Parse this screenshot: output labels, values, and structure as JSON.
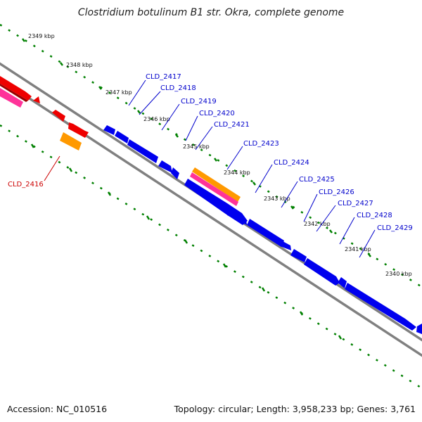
{
  "title": "Clostridium botulinum B1 str. Okra, complete genome",
  "footer": {
    "accession": "Accession: NC_010516",
    "topology": "Topology: circular; Length: 3,958,233 bp; Genes: 3,761"
  },
  "colors": {
    "backbone": "#8c8c8c",
    "cds": "#0000ee",
    "rrna": "#ee0000",
    "trna": "#ff3399",
    "other": "#ff9900",
    "ticks": "#008000",
    "label_blue": "#0000cc",
    "label_red": "#cc0000"
  },
  "ticks": [
    "2349 kbp",
    "2348 kbp",
    "2347 kbp",
    "2346 kbp",
    "2345 kbp",
    "2344 kbp",
    "2343 kbp",
    "2342 kbp",
    "2341 kbp",
    "2340 kbp"
  ],
  "gene_labels": [
    "CLD_2416",
    "CLD_2417",
    "CLD_2418",
    "CLD_2419",
    "CLD_2420",
    "CLD_2421",
    "CLD_2423",
    "CLD_2424",
    "CLD_2425",
    "CLD_2426",
    "CLD_2427",
    "CLD_2428",
    "CLD_2429"
  ]
}
